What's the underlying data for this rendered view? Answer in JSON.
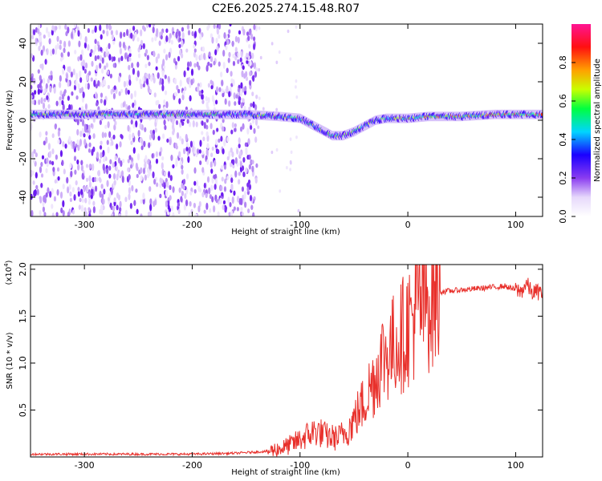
{
  "title": "C2E6.2025.274.15.48.R07",
  "colors": {
    "snr_line": "#e8302b",
    "frame": "#000000",
    "background": "#ffffff"
  },
  "chart_data": [
    {
      "type": "heatmap",
      "xlabel": "Height of straight line (km)",
      "ylabel": "Frequency (Hz)",
      "xlim": [
        -350,
        125
      ],
      "ylim": [
        -50,
        50
      ],
      "x_ticks": [
        -300,
        -200,
        -100,
        0,
        100
      ],
      "x_tick_labels": [
        "-300",
        "-200",
        "-100",
        "0",
        "100"
      ],
      "y_ticks": [
        -40,
        -20,
        0,
        20,
        40
      ],
      "y_tick_labels": [
        "-40",
        "-20",
        "0",
        "20",
        "40"
      ],
      "ridge": {
        "x": [
          -350,
          -300,
          -250,
          -200,
          -150,
          -120,
          -100,
          -90,
          -80,
          -70,
          -60,
          -50,
          -40,
          -30,
          -20,
          0,
          20,
          50,
          80,
          100,
          125
        ],
        "frequency": [
          3,
          3,
          3,
          3,
          3,
          2,
          1,
          -2,
          -5,
          -8,
          -8,
          -6,
          -3,
          0,
          1,
          1,
          2,
          2,
          3,
          3,
          3
        ]
      },
      "scattered_noise_region_x": [
        -350,
        -140
      ],
      "colorbar": {
        "label": "Normalized spectral amplitude",
        "range": [
          0,
          1
        ],
        "ticks": [
          0.0,
          0.2,
          0.4,
          0.6,
          0.8
        ],
        "tick_labels": [
          "0.0",
          "0.2",
          "0.4",
          "0.6",
          "0.8"
        ],
        "colors": [
          "#ffffff",
          "#9b5cf0",
          "#2a00ff",
          "#00e5ff",
          "#00ff50",
          "#c8ff00",
          "#ffa000",
          "#ff0000",
          "#ff1493"
        ]
      }
    },
    {
      "type": "line",
      "xlabel": "Height of straight line (km)",
      "ylabel": "SNR (10 * v/v)",
      "y_multiplier_label": "(x10",
      "y_multiplier_exp": "4",
      "xlim": [
        -350,
        125
      ],
      "ylim": [
        0,
        2.05
      ],
      "x_ticks": [
        -300,
        -200,
        -100,
        0,
        100
      ],
      "x_tick_labels": [
        "-300",
        "-200",
        "-100",
        "0",
        "100"
      ],
      "y_ticks": [
        0.5,
        1.0,
        1.5,
        2.0
      ],
      "y_tick_labels": [
        "0.5",
        "1.0",
        "1.5",
        "2.0"
      ],
      "series": [
        {
          "x": [
            -350,
            -300,
            -250,
            -200,
            -160,
            -130,
            -115,
            -105,
            -95,
            -85,
            -75,
            -65,
            -55,
            -45,
            -40,
            -35,
            -30,
            -25,
            -20,
            -15,
            -10,
            -5,
            0,
            5,
            10,
            15,
            20,
            25,
            30,
            50,
            70,
            90,
            100,
            105,
            110,
            115,
            120,
            125
          ],
          "y": [
            0.03,
            0.03,
            0.03,
            0.03,
            0.04,
            0.06,
            0.1,
            0.15,
            0.22,
            0.28,
            0.22,
            0.2,
            0.3,
            0.5,
            0.6,
            0.75,
            0.85,
            1.05,
            1.1,
            1.15,
            1.25,
            1.3,
            1.4,
            1.5,
            1.6,
            1.65,
            1.7,
            1.75,
            1.76,
            1.78,
            1.8,
            1.82,
            1.78,
            1.76,
            1.85,
            1.75,
            1.76,
            1.75
          ]
        }
      ]
    }
  ]
}
